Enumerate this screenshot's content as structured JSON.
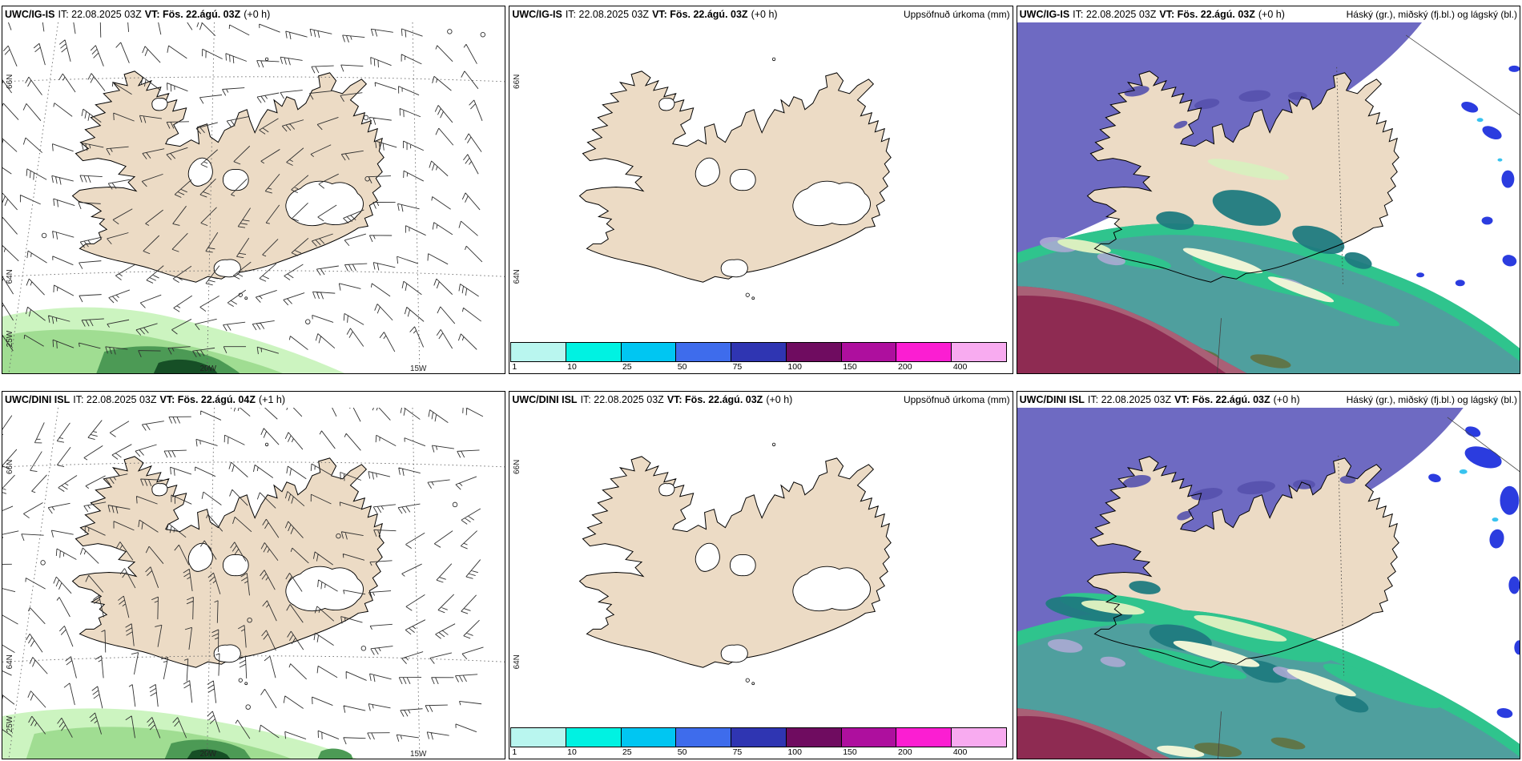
{
  "panels": [
    {
      "model": "UWC/IG-IS",
      "it": "IT: 22.08.2025 03Z",
      "vt": "VT: Fös. 22.ágú. 03Z",
      "lead": "(+0 h)",
      "corner": ""
    },
    {
      "model": "UWC/IG-IS",
      "it": "IT: 22.08.2025 03Z",
      "vt": "VT: Fös. 22.ágú. 03Z",
      "lead": "(+0 h)",
      "corner": "Uppsöfnuð úrkoma (mm)"
    },
    {
      "model": "UWC/IG-IS",
      "it": "IT: 22.08.2025 03Z",
      "vt": "VT: Fös. 22.ágú. 03Z",
      "lead": "(+0 h)",
      "corner": "Háský (gr.), miðský (fj.bl.) og lágský (bl.)"
    },
    {
      "model": "UWC/DINI ISL",
      "it": "IT: 22.08.2025 03Z",
      "vt": "VT: Fös. 22.ágú. 04Z",
      "lead": "(+1 h)",
      "corner": ""
    },
    {
      "model": "UWC/DINI ISL",
      "it": "IT: 22.08.2025 03Z",
      "vt": "VT: Fös. 22.ágú. 03Z",
      "lead": "(+0 h)",
      "corner": "Uppsöfnuð úrkoma (mm)"
    },
    {
      "model": "UWC/DINI ISL",
      "it": "IT: 22.08.2025 03Z",
      "vt": "VT: Fös. 22.ágú. 03Z",
      "lead": "(+0 h)",
      "corner": "Háský (gr.), miðský (fj.bl.) og lágský (bl.)"
    }
  ],
  "colorbar": {
    "labels": [
      "1",
      "10",
      "25",
      "50",
      "75",
      "100",
      "150",
      "200",
      "400"
    ],
    "colors": [
      "#b9f6ef",
      "#00f2e2",
      "#00c6f2",
      "#3e6cec",
      "#2f35b2",
      "#6f0c60",
      "#ae0f9e",
      "#fb1ed2",
      "#f8abf0"
    ]
  },
  "geo_labels": {
    "lat66": "66N",
    "lat64": "64N",
    "lon25": "25W",
    "lon20": "20W",
    "lon15": "15W"
  },
  "palette": {
    "land": "#ecdbc5",
    "coast": "#000000",
    "barb": "#2f2f2f",
    "g1": "#ccf4c0",
    "g2": "#a0dd92",
    "g3": "#4c9a55",
    "g4": "#164f26",
    "purple": "#6e6ac2",
    "purpleDark": "#5551ad",
    "teal": "#4f9f9e",
    "tealDark": "#1f7b80",
    "emerald": "#2fc48d",
    "cream": "#eef4d6",
    "paleGreen": "#d9efbf",
    "lavender": "#b0aad6",
    "maroon": "#8e2b52",
    "mauve": "#b06e80",
    "olive": "#61713f",
    "royal": "#2b3cdf",
    "sky": "#38c3ef"
  }
}
